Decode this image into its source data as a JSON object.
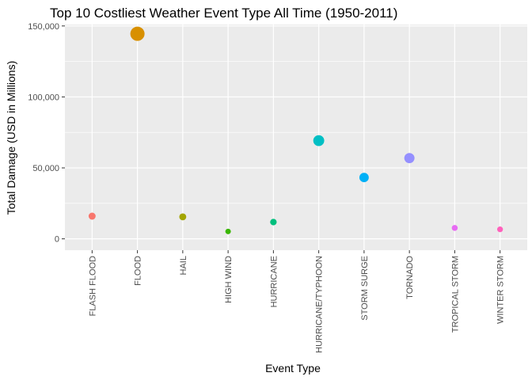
{
  "chart_data": {
    "type": "scatter",
    "title": "Top 10 Costliest Weather Event Type All Time (1950-2011)",
    "xlabel": "Event Type",
    "ylabel": "Total Damage (USD in Millions)",
    "categories": [
      "FLASH FLOOD",
      "FLOOD",
      "HAIL",
      "HIGH WIND",
      "HURRICANE",
      "HURRICANE/TYPHOON",
      "STORM SURGE",
      "TORNADO",
      "TROPICAL STORM",
      "WINTER STORM"
    ],
    "values": [
      16000,
      144500,
      15500,
      5200,
      11800,
      69200,
      43200,
      56900,
      7700,
      6700
    ],
    "colors": [
      "#F8766D",
      "#D89000",
      "#A3A500",
      "#39B600",
      "#00BF7D",
      "#00BFC4",
      "#00B0F6",
      "#9590FF",
      "#E76BF3",
      "#FF62BC"
    ],
    "ylim": [
      -8000,
      151000
    ],
    "yticks": [
      0,
      50000,
      100000,
      150000
    ],
    "ytick_labels": [
      "0",
      "50,000",
      "100,000",
      "150,000"
    ],
    "grid": true,
    "legend": "none",
    "panel_background": "#EBEBEB",
    "grid_color": "#FFFFFF"
  }
}
